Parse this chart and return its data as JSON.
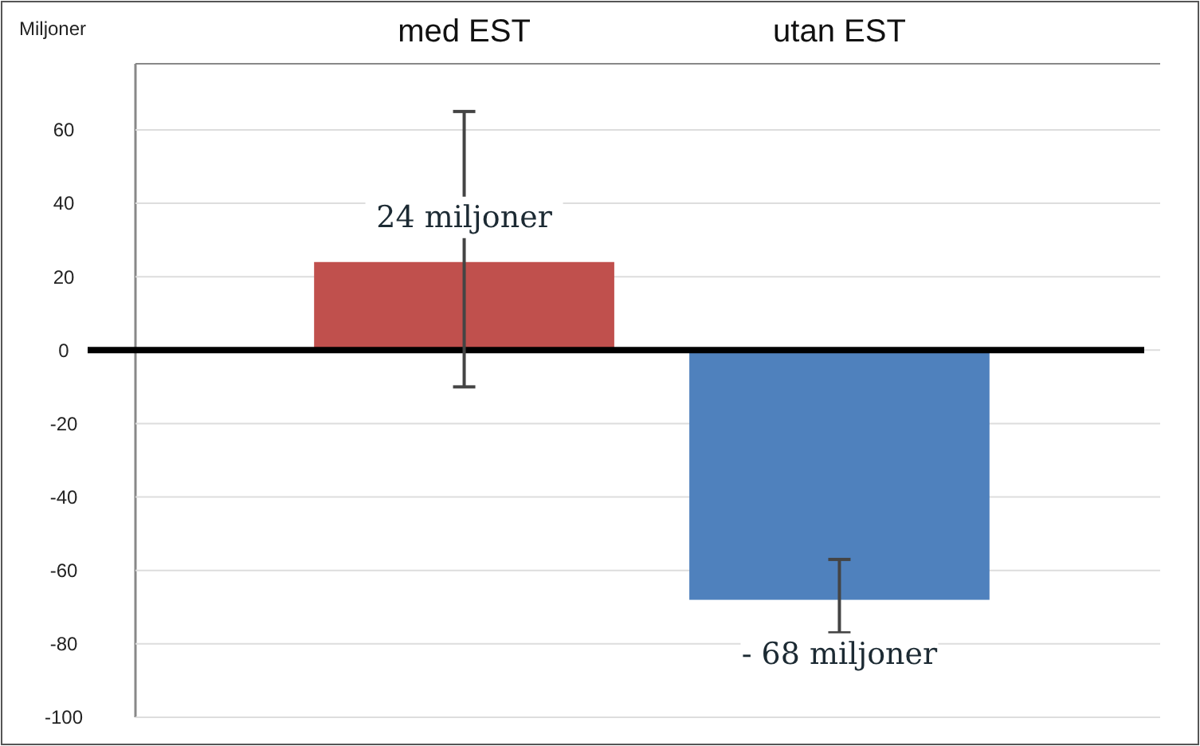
{
  "chart_data": {
    "type": "bar",
    "ylabel": "Miljoner",
    "categories": [
      "med EST",
      "utan EST"
    ],
    "values": [
      24,
      -68
    ],
    "colors": [
      "#c0504d",
      "#4f81bd"
    ],
    "value_labels": [
      "24 miljoner",
      "- 68 miljoner"
    ],
    "errors": [
      [
        -10,
        65
      ],
      [
        -77,
        -57
      ]
    ],
    "ylim": [
      -100,
      78
    ],
    "yticks": [
      60,
      40,
      20,
      0,
      -20,
      -40,
      -60,
      -80,
      -100
    ],
    "grid": "y"
  }
}
